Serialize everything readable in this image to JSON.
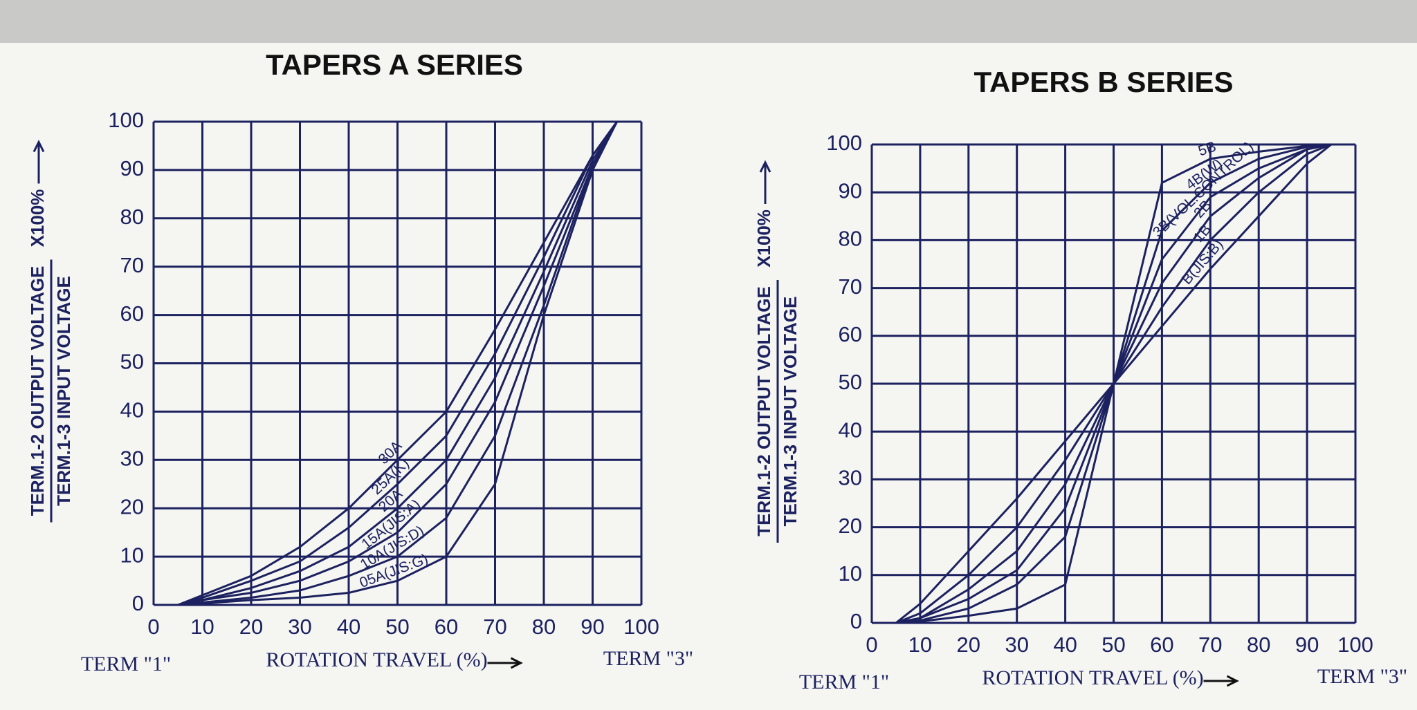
{
  "chart_data": [
    {
      "type": "line",
      "title": "TAPERS A SERIES",
      "y_label_top": "TERM.1-2  OUTPUT VOLTAGE",
      "y_label_bottom": "TERM.1-3  INPUT VOLTAGE",
      "y_unit": "X100%",
      "x_left_label": "TERM  \"1\"",
      "x_label": "ROTATION  TRAVEL (%)",
      "x_right_label": "TERM  \"3\"",
      "x": [
        5,
        10,
        20,
        30,
        40,
        50,
        60,
        70,
        80,
        90,
        95
      ],
      "series": [
        {
          "name": "30A",
          "color": "#1c2160",
          "values": [
            0,
            2,
            6,
            12,
            20,
            30,
            40,
            57,
            75,
            93,
            100
          ]
        },
        {
          "name": "25A(K)",
          "color": "#1c2160",
          "values": [
            0,
            1.5,
            5,
            9,
            16,
            25,
            35,
            52,
            72,
            93,
            100
          ]
        },
        {
          "name": "20A",
          "color": "#1c2160",
          "values": [
            0,
            1,
            3.5,
            7,
            12,
            20,
            30,
            47,
            69,
            92,
            100
          ]
        },
        {
          "name": "15A(JIS:A)",
          "color": "#1c2160",
          "values": [
            0,
            1,
            2.5,
            5,
            9,
            15,
            25,
            42,
            66,
            91,
            100
          ]
        },
        {
          "name": "10A(JIS:D)",
          "color": "#1c2160",
          "values": [
            0,
            0.5,
            1.5,
            3,
            6,
            10,
            18,
            35,
            62,
            91,
            100
          ]
        },
        {
          "name": "05A(JIS:G)",
          "color": "#1c2160",
          "values": [
            0,
            0.3,
            1,
            1.5,
            2.5,
            5,
            10,
            25,
            60,
            90,
            100
          ]
        }
      ],
      "xlim": [
        0,
        100
      ],
      "ylim": [
        0,
        100
      ],
      "xticks": [
        0,
        10,
        20,
        30,
        40,
        50,
        60,
        70,
        80,
        90,
        100
      ],
      "yticks": [
        0,
        10,
        20,
        30,
        40,
        50,
        60,
        70,
        80,
        90,
        100
      ],
      "grid": true
    },
    {
      "type": "line",
      "title": "TAPERS B SERIES",
      "y_label_top": "TERM.1-2  OUTPUT VOLTAGE",
      "y_label_bottom": "TERM.1-3  INPUT VOLTAGE",
      "y_unit": "X100%",
      "x_left_label": "TERM  \"1\"",
      "x_label": "ROTATION  TRAVEL (%)",
      "x_right_label": "TERM  \"3\"",
      "x": [
        5,
        10,
        20,
        30,
        40,
        50,
        60,
        70,
        80,
        90,
        95
      ],
      "series": [
        {
          "name": "5B",
          "color": "#1c2160",
          "values": [
            0,
            0.3,
            1.5,
            3,
            8,
            50,
            92,
            97,
            98.5,
            99.7,
            100
          ]
        },
        {
          "name": "4B(W)",
          "color": "#1c2160",
          "values": [
            0,
            0.5,
            3,
            8,
            18,
            50,
            82,
            92,
            97,
            99.5,
            100
          ]
        },
        {
          "name": "3B(VOL.CONTROL)",
          "color": "#1c2160",
          "values": [
            0,
            1,
            5,
            11,
            24,
            50,
            76,
            89,
            95,
            99,
            100
          ]
        },
        {
          "name": "2B",
          "color": "#1c2160",
          "values": [
            0,
            1,
            7,
            15,
            29,
            50,
            71,
            85,
            93,
            99,
            100
          ]
        },
        {
          "name": "1B",
          "color": "#1c2160",
          "values": [
            0,
            2,
            10,
            20,
            34,
            50,
            66,
            80,
            90,
            98,
            100
          ]
        },
        {
          "name": "B(JIS:B)",
          "color": "#1c2160",
          "values": [
            0,
            4,
            15,
            26,
            38,
            50,
            62,
            74,
            85,
            96,
            100
          ]
        }
      ],
      "xlim": [
        0,
        100
      ],
      "ylim": [
        0,
        100
      ],
      "xticks": [
        0,
        10,
        20,
        30,
        40,
        50,
        60,
        70,
        80,
        90,
        100
      ],
      "yticks": [
        0,
        10,
        20,
        30,
        40,
        50,
        60,
        70,
        80,
        90,
        100
      ],
      "grid": true
    }
  ]
}
